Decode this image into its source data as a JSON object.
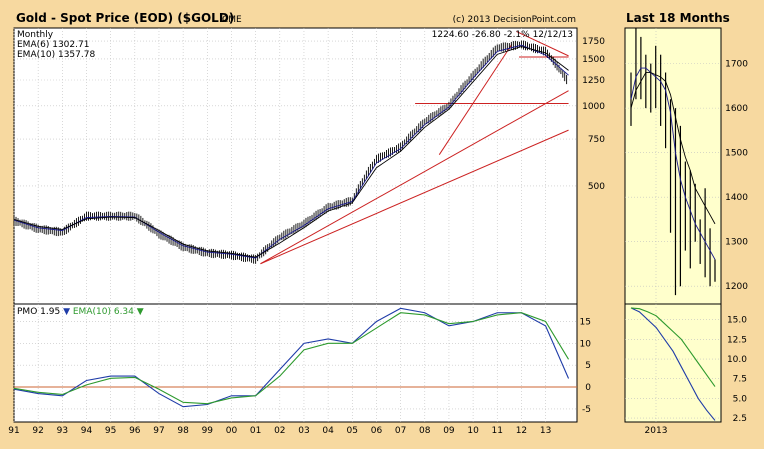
{
  "main_title": "Gold - Spot Price (EOD) ($GOLD)",
  "exchange": "CME",
  "copyright": "(c) 2013 DecisionPoint.com",
  "side_title": "Last 18 Months",
  "period": "Monthly",
  "last_quote": "1224.60  -26.80  -2.1%  12/12/13",
  "ema6_label": "EMA(6)",
  "ema6_value": "1302.71",
  "ema10_label": "EMA(10)",
  "ema10_value": "1357.78",
  "pmo_label": "PMO",
  "pmo_value": "1.95",
  "pmo_ema_label": "EMA(10)",
  "pmo_ema_value": "6.34",
  "colors": {
    "background": "#f7d9a0",
    "plot_bg": "#ffffff",
    "side_plot_bg": "#ffffcc",
    "price": "#000000",
    "ema_fast": "#1a1a8c",
    "ema_slow": "#000000",
    "pmo": "#1f3ca8",
    "pmo_signal": "#2e9a2e",
    "trendline": "#cc2222",
    "zero_line": "#cc6633",
    "grid": "#c0c0c0"
  },
  "chart_data": [
    {
      "type": "line",
      "name": "price_panel",
      "title": "Gold - Spot Price (EOD) ($GOLD)",
      "x": [
        1991,
        1992,
        1993,
        1994,
        1995,
        1996,
        1997,
        1998,
        1999,
        2000,
        2001,
        2002,
        2003,
        2004,
        2005,
        2006,
        2007,
        2008,
        2009,
        2010,
        2011,
        2012,
        2013,
        2013.95
      ],
      "series": [
        {
          "name": "Price",
          "values": [
            370,
            345,
            335,
            385,
            385,
            385,
            330,
            295,
            280,
            275,
            265,
            320,
            360,
            415,
            440,
            630,
            700,
            870,
            1000,
            1300,
            1650,
            1700,
            1600,
            1225
          ]
        },
        {
          "name": "EMA(6)",
          "values": [
            372,
            348,
            340,
            380,
            384,
            382,
            335,
            298,
            282,
            277,
            268,
            315,
            355,
            410,
            437,
            610,
            690,
            850,
            990,
            1270,
            1600,
            1690,
            1550,
            1303
          ]
        },
        {
          "name": "EMA(10)",
          "values": [
            374,
            352,
            343,
            376,
            382,
            380,
            340,
            302,
            285,
            279,
            270,
            305,
            348,
            402,
            432,
            585,
            675,
            830,
            970,
            1230,
            1560,
            1670,
            1580,
            1358
          ]
        }
      ],
      "trendlines": [
        {
          "from": [
            2001.2,
            255
          ],
          "to": [
            2013.95,
            1140
          ]
        },
        {
          "from": [
            2001.2,
            255
          ],
          "to": [
            2013.95,
            810
          ]
        },
        {
          "from": [
            2008.6,
            655
          ],
          "to": [
            2011.6,
            1700
          ]
        },
        {
          "from": [
            2011.8,
            1900
          ],
          "to": [
            2013.95,
            1540
          ]
        },
        {
          "from": [
            2007.6,
            1020
          ],
          "to": [
            2013.95,
            1020
          ]
        },
        {
          "from": [
            2011.9,
            1525
          ],
          "to": [
            2013.95,
            1525
          ]
        }
      ],
      "xlim": [
        1991,
        2014.3
      ],
      "ylim": [
        180,
        1960
      ],
      "y_ticks": [
        500,
        750,
        1000,
        1250,
        1500,
        1750
      ],
      "x_tick_labels": [
        "91",
        "92",
        "93",
        "94",
        "95",
        "96",
        "97",
        "98",
        "99",
        "00",
        "01",
        "02",
        "03",
        "04",
        "05",
        "06",
        "07",
        "08",
        "09",
        "10",
        "11",
        "12",
        "13"
      ],
      "scale": "log"
    },
    {
      "type": "line",
      "name": "pmo_panel",
      "x": [
        1991,
        1992,
        1993,
        1994,
        1995,
        1996,
        1997,
        1998,
        1999,
        2000,
        2001,
        2002,
        2003,
        2004,
        2005,
        2006,
        2007,
        2008,
        2009,
        2010,
        2011,
        2012,
        2013,
        2013.95
      ],
      "series": [
        {
          "name": "PMO",
          "values": [
            -0.5,
            -1.5,
            -2,
            1.5,
            2.5,
            2.5,
            -1.5,
            -4.5,
            -4,
            -2,
            -2,
            4,
            10,
            11,
            10,
            15,
            18,
            17,
            14,
            15,
            17,
            17,
            14,
            1.95
          ]
        },
        {
          "name": "EMA(10)",
          "values": [
            -0.3,
            -1.2,
            -1.7,
            0.5,
            2,
            2.2,
            -0.5,
            -3.5,
            -3.8,
            -2.5,
            -2,
            2.5,
            8.5,
            10,
            10,
            13.5,
            17,
            16.5,
            14.5,
            15,
            16.5,
            17,
            15,
            6.34
          ]
        }
      ],
      "ylim": [
        -8,
        19
      ],
      "y_ticks": [
        -5,
        0,
        5,
        10,
        15
      ]
    },
    {
      "type": "bar",
      "name": "side_price_panel",
      "title": "Last 18 Months",
      "x_tick_labels": [
        "2013"
      ],
      "values_high": [
        1680,
        1780,
        1760,
        1720,
        1700,
        1740,
        1720,
        1680,
        1620,
        1600,
        1560,
        1480,
        1460,
        1430,
        1350,
        1420,
        1330,
        1260
      ],
      "values_low": [
        1560,
        1620,
        1620,
        1600,
        1590,
        1600,
        1560,
        1510,
        1320,
        1180,
        1200,
        1280,
        1240,
        1300,
        1250,
        1220,
        1200,
        1210
      ],
      "series": [
        {
          "name": "EMA(6)",
          "values": [
            1620,
            1670,
            1690,
            1690,
            1680,
            1670,
            1660,
            1640,
            1590,
            1500,
            1440,
            1400,
            1370,
            1340,
            1320,
            1300,
            1280,
            1260
          ]
        },
        {
          "name": "EMA(10)",
          "values": [
            1600,
            1640,
            1660,
            1680,
            1680,
            1675,
            1670,
            1660,
            1630,
            1580,
            1530,
            1490,
            1460,
            1420,
            1400,
            1380,
            1360,
            1340
          ]
        }
      ],
      "ylim": [
        1160,
        1780
      ],
      "y_ticks": [
        1200,
        1300,
        1400,
        1500,
        1600,
        1700
      ]
    },
    {
      "type": "line",
      "name": "side_pmo_panel",
      "series": [
        {
          "name": "PMO",
          "values": [
            16.5,
            16,
            15,
            14,
            12.5,
            11,
            9,
            7,
            5,
            3.5,
            2.2
          ]
        },
        {
          "name": "EMA(10)",
          "values": [
            16.5,
            16.4,
            16,
            15.5,
            14.5,
            13.5,
            12.5,
            11,
            9.5,
            8,
            6.5
          ]
        }
      ],
      "ylim": [
        2,
        17
      ],
      "y_ticks": [
        2.5,
        5.0,
        7.5,
        10.0,
        12.5,
        15.0
      ]
    }
  ]
}
